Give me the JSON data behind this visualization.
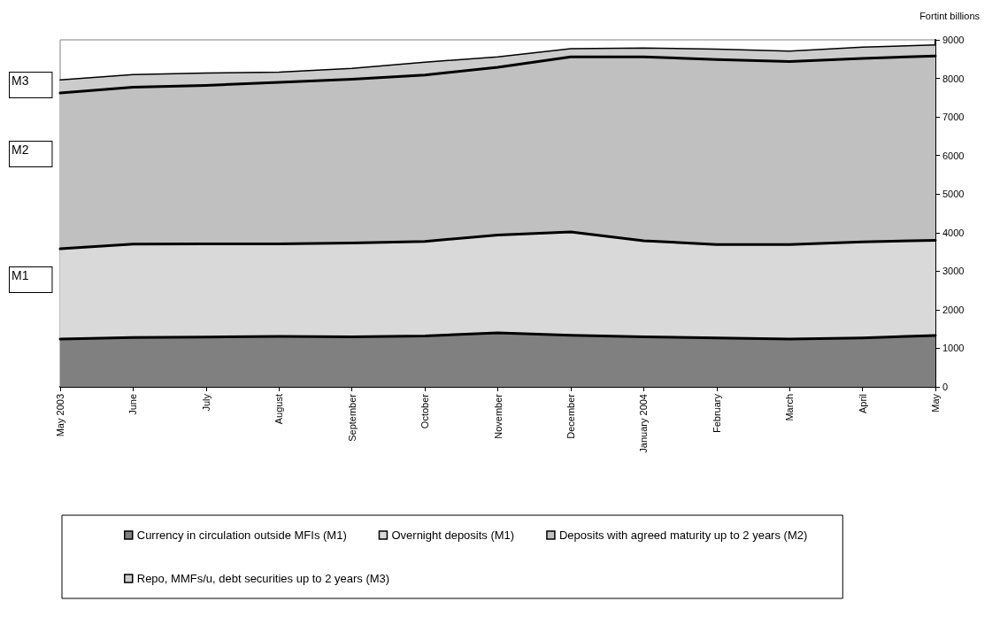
{
  "chart_data": {
    "type": "area",
    "stacked": true,
    "ylabel": "Fortint billions",
    "categories": [
      "May 2003",
      "June",
      "July",
      "August",
      "September",
      "October",
      "November",
      "December",
      "January 2004",
      "February",
      "March",
      "April",
      "May"
    ],
    "series": [
      {
        "name": "Currency in circulation outside MFIs (M1)",
        "color": "#808080",
        "values": [
          1240,
          1280,
          1290,
          1310,
          1300,
          1320,
          1400,
          1340,
          1300,
          1270,
          1240,
          1270,
          1330
        ]
      },
      {
        "name": "Overnight deposits (M1)",
        "color": "#d9d9d9",
        "values": [
          2340,
          2420,
          2420,
          2400,
          2430,
          2450,
          2540,
          2680,
          2490,
          2420,
          2450,
          2490,
          2470
        ]
      },
      {
        "name": "Deposits with agreed maturity up to 2 years (M2)",
        "color": "#c0c0c0",
        "values": [
          4040,
          4070,
          4110,
          4190,
          4250,
          4320,
          4350,
          4540,
          4770,
          4800,
          4750,
          4760,
          4780
        ]
      },
      {
        "name": "Repo, MMFs/u, debt securities up to 2 years (M3)",
        "color": "#cccccc",
        "values": [
          340,
          330,
          320,
          260,
          280,
          330,
          270,
          210,
          230,
          270,
          270,
          290,
          290
        ]
      }
    ],
    "ylim": [
      0,
      9000
    ],
    "yticks": [
      0,
      1000,
      2000,
      3000,
      4000,
      5000,
      6000,
      7000,
      8000,
      9000
    ],
    "grid": false,
    "legend": "bottom",
    "marker": "none",
    "line_style": "solid",
    "annotations": [
      "M3",
      "M2",
      "M1"
    ]
  }
}
